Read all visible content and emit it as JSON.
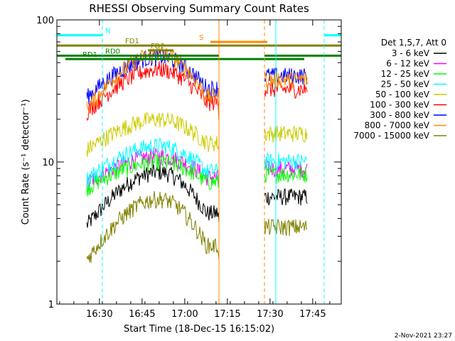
{
  "chart_data": {
    "type": "line",
    "title": "RHESSI Observing Summary Count Rates",
    "xlabel": "Start Time (18-Dec-15 16:15:02)",
    "ylabel": "Count Rate (s⁻¹ detector⁻¹)",
    "yscale": "log",
    "ylim": [
      1,
      100
    ],
    "xlim_minutes": [
      0,
      100
    ],
    "x_ticks": [
      "16:30",
      "16:45",
      "17:00",
      "17:15",
      "17:30",
      "17:45"
    ],
    "y_ticks": [
      "1",
      "10",
      "100"
    ],
    "legend_header": "Det 1,5,7, Att 0",
    "legend_placement": "right",
    "timestamp": "2-Nov-2021 23:27",
    "gaps": [
      [
        57,
        73
      ],
      [
        88,
        100
      ]
    ],
    "series": [
      {
        "name": "3 - 6 keV",
        "color": "#000000",
        "base": 3.5,
        "peak": 8.5
      },
      {
        "name": "6 - 12 keV",
        "color": "#ff00ff",
        "base": 7.0,
        "peak": 11.0
      },
      {
        "name": "12 - 25 keV",
        "color": "#00ff00",
        "base": 6.5,
        "peak": 10.0
      },
      {
        "name": "25 - 50 keV",
        "color": "#00ffff",
        "base": 7.5,
        "peak": 13.0
      },
      {
        "name": "50 - 100 keV",
        "color": "#cccc00",
        "base": 12.0,
        "peak": 20.0
      },
      {
        "name": "100 - 300 keV",
        "color": "#ff0000",
        "base": 22.0,
        "peak": 45.0
      },
      {
        "name": "300 - 800 keV",
        "color": "#0000ff",
        "base": 28.0,
        "peak": 55.0
      },
      {
        "name": "800 - 7000 keV",
        "color": "#ff8800",
        "base": 23.0,
        "peak": 58.0
      },
      {
        "name": "7000 - 15000 keV",
        "color": "#808000",
        "base": 2.0,
        "peak": 5.5
      }
    ],
    "flag_bars": [
      {
        "label": "N",
        "color": "#00ffff",
        "y": 78,
        "segments": [
          [
            0,
            16
          ],
          [
            94,
            100
          ]
        ],
        "label_at": 17
      },
      {
        "label": "S",
        "color": "#ff8800",
        "y": 70,
        "segments": [
          [
            54,
            74
          ]
        ],
        "label_at": 50
      },
      {
        "label": "FD1",
        "color": "#808000",
        "y": 66,
        "segments": [
          [
            0,
            100
          ]
        ],
        "label_at": 24
      },
      {
        "label": "FD2",
        "color": "#808000",
        "y": 61,
        "segments": [
          [
            32,
            41
          ]
        ],
        "label_at": 33
      },
      {
        "label": "RD0",
        "color": "#008000",
        "y": 56,
        "segments": [
          [
            0,
            57
          ],
          [
            73,
            100
          ]
        ],
        "label_at": 17
      },
      {
        "label": "RD1",
        "color": "#008000",
        "y": 53,
        "segments": [
          [
            3,
            87
          ]
        ],
        "label_at": 9
      }
    ],
    "vlines": [
      {
        "x": 0,
        "color": "#00ffff",
        "style": "solid"
      },
      {
        "x": 16,
        "color": "#00ffff",
        "style": "dashed"
      },
      {
        "x": 57,
        "color": "#ff8800",
        "style": "solid"
      },
      {
        "x": 73,
        "color": "#ff8800",
        "style": "dashed"
      },
      {
        "x": 77,
        "color": "#00ffff",
        "style": "solid"
      },
      {
        "x": 94,
        "color": "#00ffff",
        "style": "dashed"
      }
    ]
  }
}
